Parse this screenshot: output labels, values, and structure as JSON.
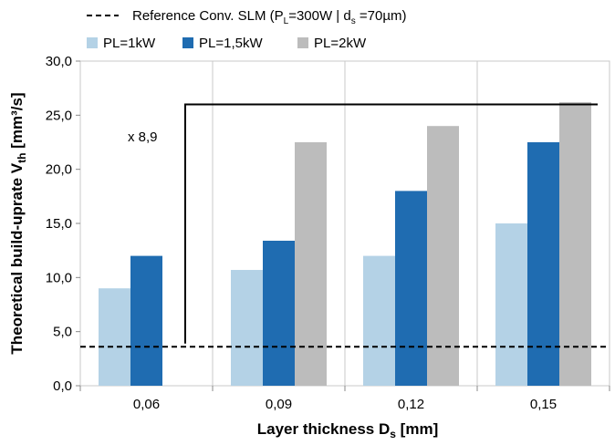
{
  "chart_data": {
    "type": "bar",
    "categories": [
      "0,06",
      "0,09",
      "0,12",
      "0,15"
    ],
    "series": [
      {
        "name": "PL=1kW",
        "color": "#b4d2e6",
        "values": [
          9.0,
          10.7,
          12.0,
          15.0
        ]
      },
      {
        "name": "PL=1,5kW",
        "color": "#1f6cb1",
        "values": [
          12.0,
          13.4,
          18.0,
          22.5
        ]
      },
      {
        "name": "PL=2kW",
        "color": "#bcbcbc",
        "values": [
          null,
          22.5,
          24.0,
          26.2
        ]
      }
    ],
    "reference_line": {
      "label": "Reference Conv. SLM (P",
      "label_sub1": "L",
      "label_mid": "=300W | d",
      "label_sub2": "s",
      "label_end": " =70µm)",
      "value": 3.6
    },
    "annotation": {
      "text": "x 8,9",
      "from_value": 3.9,
      "to_value": 26.0
    },
    "ylabel": "Theoretical build-uprate V",
    "ylabel_sub": "th",
    "ylabel_unit": " [mm³/s]",
    "xlabel": "Layer thickness D",
    "xlabel_sub": "s",
    "xlabel_unit": " [mm]",
    "ylim": [
      0,
      30
    ],
    "yticks": [
      "0,0",
      "5,0",
      "10,0",
      "15,0",
      "20,0",
      "25,0",
      "30,0"
    ],
    "grid": "vertical",
    "legend_position": "top"
  }
}
